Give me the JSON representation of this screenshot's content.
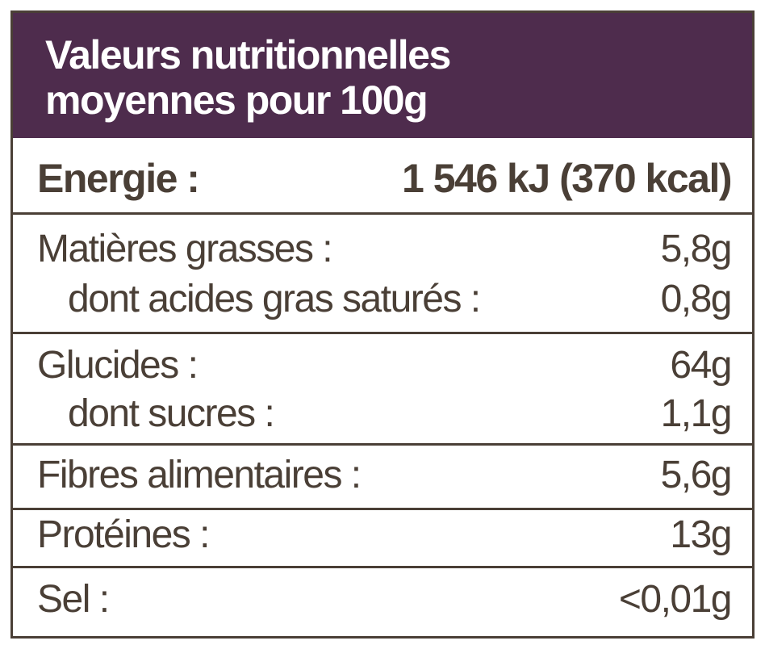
{
  "header": {
    "title_lines": [
      "Valeurs nutritionnelles",
      "moyennes pour 100g"
    ]
  },
  "table": {
    "groups": [
      {
        "rows": [
          [
            "Energie :",
            "1 546 kJ (370 kcal)"
          ]
        ]
      },
      {
        "rows": [
          [
            "Matières grasses :",
            "5,8g"
          ],
          [
            "dont acides gras saturés :",
            "0,8g"
          ]
        ]
      },
      {
        "rows": [
          [
            "Glucides :",
            "64g"
          ],
          [
            "dont sucres :",
            "1,1g"
          ]
        ]
      },
      {
        "rows": [
          [
            "Fibres alimentaires :",
            "5,6g"
          ]
        ]
      },
      {
        "rows": [
          [
            "Protéines :",
            "13g"
          ]
        ]
      },
      {
        "rows": [
          [
            "Sel :",
            "<0,01g"
          ]
        ]
      }
    ]
  }
}
